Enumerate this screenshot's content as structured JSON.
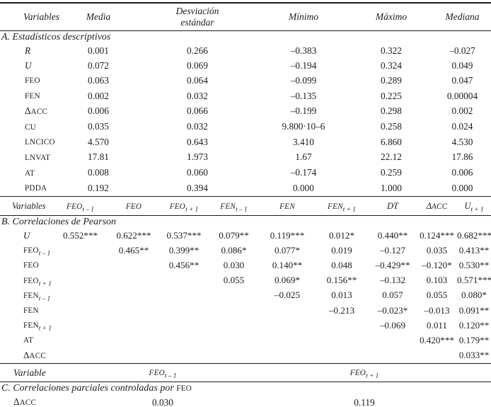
{
  "panelA": {
    "headers": [
      "Variables",
      "Media",
      "Desviación\nestándar",
      "Mínimo",
      "Máximo",
      "Mediana"
    ],
    "title": "A. Estadísticos descriptivos",
    "rows": [
      {
        "label": "{i|R}",
        "values": [
          "0.001",
          "0.266",
          "–0.383",
          "0.322",
          "–0.027"
        ]
      },
      {
        "label": "{i|U}",
        "values": [
          "0.072",
          "0.069",
          "–0.194",
          "0.324",
          "0.049"
        ]
      },
      {
        "label": "{sc|FEO}",
        "values": [
          "0.063",
          "0.064",
          "–0.099",
          "0.289",
          "0.047"
        ]
      },
      {
        "label": "{sc|FEN}",
        "values": [
          "0.002",
          "0.032",
          "–0.135",
          "0.225",
          "0.00004"
        ]
      },
      {
        "label": "Δ{sc|ACC}",
        "values": [
          "0.006",
          "0.066",
          "–0.199",
          "0.298",
          "0.002"
        ]
      },
      {
        "label": "{sc|CU}",
        "values": [
          "0.035",
          "0.032",
          "9.800·10–6",
          "0.258",
          "0.024"
        ]
      },
      {
        "label": "{sc|LNCICO}",
        "values": [
          "4.570",
          "0.643",
          "3.410",
          "6.860",
          "4.530"
        ]
      },
      {
        "label": "{sc|LNVAT}",
        "values": [
          "17.81",
          "1.973",
          "1.67",
          "22.12",
          "17.86"
        ]
      },
      {
        "label": "{sc|AT}",
        "values": [
          "0.008",
          "0.060",
          "–0.174",
          "0.259",
          "0.006"
        ]
      },
      {
        "label": "{sc|PDDA}",
        "values": [
          "0.192",
          "0.394",
          "0.000",
          "1.000",
          "0.000"
        ]
      }
    ]
  },
  "panelB": {
    "headers": [
      "Variables",
      "{sc|FEO}{sub|t – 1}",
      "{sc|FEO}",
      "{sc|FEO}{sub|t + 1}",
      "{sc|FEN}{sub|t – 1}",
      "{sc|FEN}",
      "{sc|FEN}{sub|t + 1}",
      "{i|DT}",
      "Δ{sc|ACC}",
      "{i|U}{sub|t + 1}"
    ],
    "title": "B. Correlaciones de Pearson",
    "rows": [
      {
        "label": "{i|U}",
        "values": [
          "0.552***",
          "0.622***",
          "0.537***",
          "0.079**",
          "0.119***",
          "0.012*",
          "0.440**",
          "0.124***",
          "0.682***"
        ]
      },
      {
        "label": "{sc|FEO}{sub|t – 1}",
        "values": [
          "",
          "0.465**",
          "0.399**",
          "0.086*",
          "0.077*",
          "0.019",
          "–0.127",
          "0.035",
          "0.413**"
        ]
      },
      {
        "label": "{sc|FEO}",
        "values": [
          "",
          "",
          "0.456**",
          "0.030",
          "0.140**",
          "0.048",
          "–0.429**",
          "–0.120*",
          "0.530**"
        ]
      },
      {
        "label": "{sc|FEO}{sub|t + 1}",
        "values": [
          "",
          "",
          "",
          "0.055",
          "0.069*",
          "0.156**",
          "–0.132",
          "0.103",
          "0.571***"
        ]
      },
      {
        "label": "{sc|FEN}{sub|t – 1}",
        "values": [
          "",
          "",
          "",
          "",
          "–0.025",
          "0.013",
          "0.057",
          "0.055",
          "0.080*"
        ]
      },
      {
        "label": "{sc|FEN}",
        "values": [
          "",
          "",
          "",
          "",
          "",
          "–0.213",
          "–0.023*",
          "–0.013",
          "0.091**"
        ]
      },
      {
        "label": "{sc|FEN}{sub|t + 1}",
        "values": [
          "",
          "",
          "",
          "",
          "",
          "",
          "–0.069",
          "0.011",
          "0.120**"
        ]
      },
      {
        "label": "{sc|AT}",
        "values": [
          "",
          "",
          "",
          "",
          "",
          "",
          "",
          "0.420***",
          "0.179**"
        ]
      },
      {
        "label": "Δ{sc|ACC}",
        "values": [
          "",
          "",
          "",
          "",
          "",
          "",
          "",
          "",
          "0.033**"
        ]
      }
    ]
  },
  "panelC": {
    "headers": [
      "Variable",
      "{sc|FEO}{sub|t – 1}",
      "{sc|FEO}{sub|t + 1}"
    ],
    "title": "C. {i|Correlaciones parciales controladas por} {sc|FEO}",
    "rows": [
      {
        "label": "Δ{sc|ACC}",
        "values": [
          "0.030",
          "0.119"
        ]
      }
    ]
  }
}
